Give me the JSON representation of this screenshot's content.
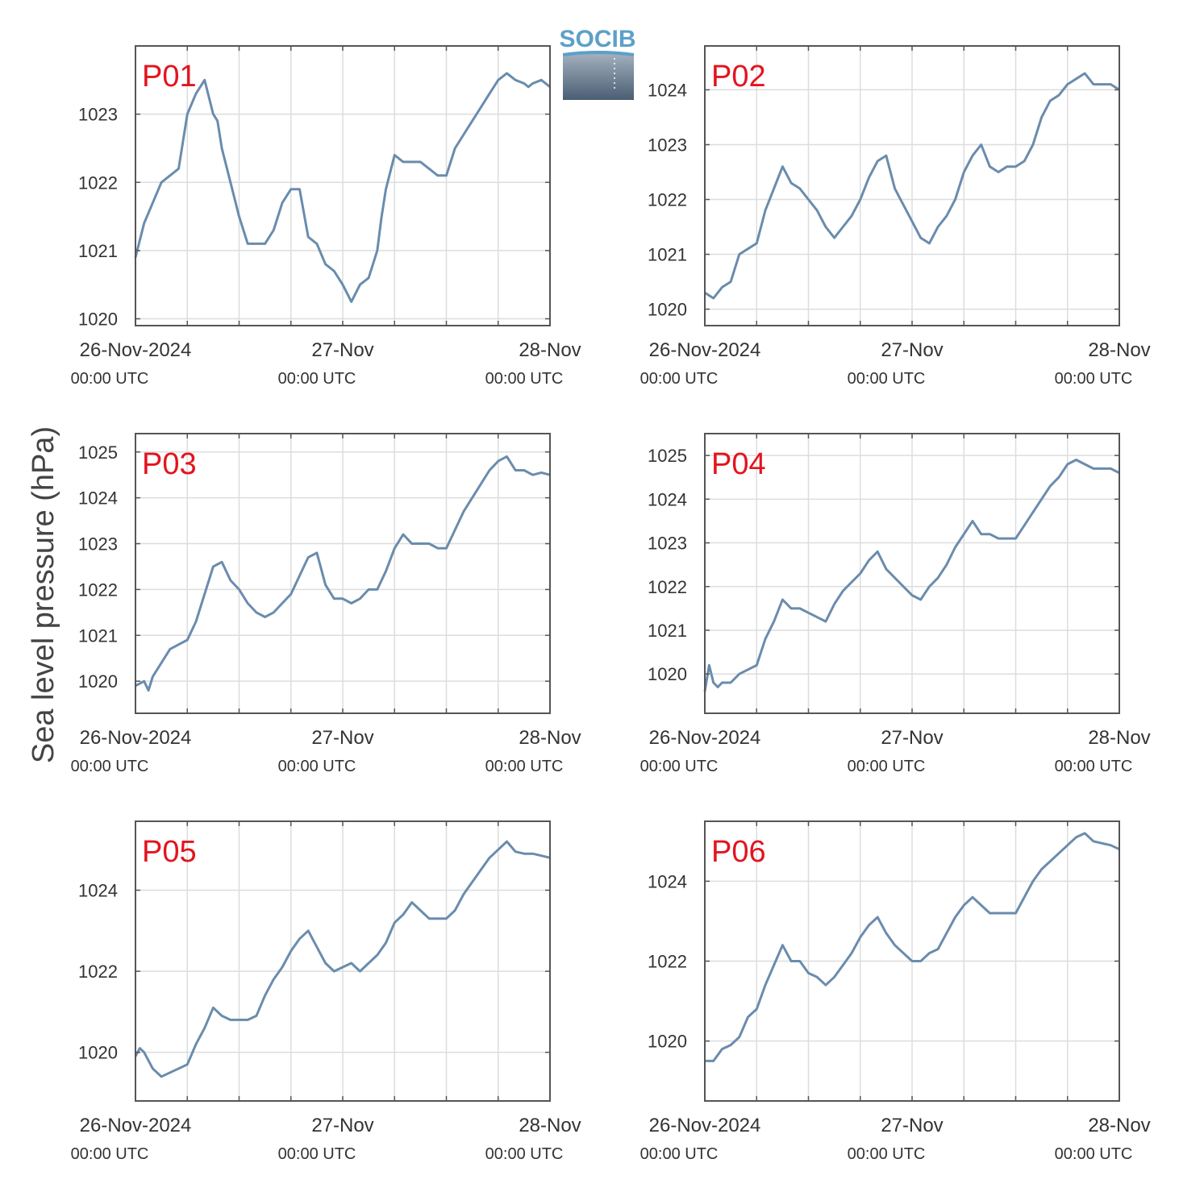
{
  "figure": {
    "ylabel": "Sea level pressure (hPa)",
    "logo_text": "SOCIB",
    "colors": {
      "line": "#6a8cad",
      "panel_label": "#e3141e",
      "grid": "#dddddd",
      "axis": "#555555"
    }
  },
  "chart_data": [
    {
      "type": "line",
      "title": "P01",
      "xlabel": "",
      "ylabel": "Sea level pressure (hPa)",
      "xlim": [
        0,
        48
      ],
      "ylim": [
        1019.9,
        1024.0
      ],
      "xticks": [
        0,
        24,
        48
      ],
      "xticklabels": [
        "26-Nov-2024",
        "27-Nov",
        "28-Nov"
      ],
      "xticksublabels": [
        "00:00 UTC",
        "00:00 UTC",
        "00:00 UTC"
      ],
      "yticks": [
        1020,
        1021,
        1022,
        1023
      ],
      "grid": true,
      "series": [
        {
          "x": [
            0,
            1,
            2,
            3,
            4,
            5,
            6,
            7,
            8,
            9,
            9.5,
            10,
            11,
            12,
            13,
            14,
            15,
            16,
            17,
            18,
            19,
            20,
            21,
            22,
            23,
            24,
            25,
            26,
            27,
            28,
            28.5,
            29,
            30,
            31,
            32,
            33,
            34,
            35,
            36,
            37,
            38,
            39,
            40,
            41,
            42,
            43,
            44,
            45,
            45.5,
            46,
            47,
            48
          ],
          "y": [
            1020.9,
            1021.4,
            1021.7,
            1022.0,
            1022.1,
            1022.2,
            1023.0,
            1023.3,
            1023.5,
            1023.0,
            1022.9,
            1022.5,
            1022.0,
            1021.5,
            1021.1,
            1021.1,
            1021.1,
            1021.3,
            1021.7,
            1021.9,
            1021.9,
            1021.2,
            1021.1,
            1020.8,
            1020.7,
            1020.5,
            1020.25,
            1020.5,
            1020.6,
            1021.0,
            1021.5,
            1021.9,
            1022.4,
            1022.3,
            1022.3,
            1022.3,
            1022.2,
            1022.1,
            1022.1,
            1022.5,
            1022.7,
            1022.9,
            1023.1,
            1023.3,
            1023.5,
            1023.6,
            1023.5,
            1023.45,
            1023.4,
            1023.45,
            1023.5,
            1023.4
          ]
        }
      ]
    },
    {
      "type": "line",
      "title": "P02",
      "xlabel": "",
      "ylabel": "Sea level pressure (hPa)",
      "xlim": [
        0,
        48
      ],
      "ylim": [
        1019.7,
        1024.8
      ],
      "xticks": [
        0,
        24,
        48
      ],
      "xticklabels": [
        "26-Nov-2024",
        "27-Nov",
        "28-Nov"
      ],
      "xticksublabels": [
        "00:00 UTC",
        "00:00 UTC",
        "00:00 UTC"
      ],
      "yticks": [
        1020,
        1021,
        1022,
        1023,
        1024
      ],
      "grid": true,
      "series": [
        {
          "x": [
            0,
            1,
            2,
            3,
            4,
            5,
            6,
            7,
            8,
            9,
            10,
            11,
            12,
            13,
            14,
            15,
            16,
            17,
            18,
            19,
            20,
            21,
            22,
            23,
            24,
            25,
            26,
            27,
            28,
            29,
            30,
            31,
            32,
            33,
            34,
            35,
            36,
            37,
            38,
            39,
            40,
            41,
            42,
            43,
            44,
            45,
            46,
            47,
            48
          ],
          "y": [
            1020.3,
            1020.2,
            1020.4,
            1020.5,
            1021.0,
            1021.1,
            1021.2,
            1021.8,
            1022.2,
            1022.6,
            1022.3,
            1022.2,
            1022.0,
            1021.8,
            1021.5,
            1021.3,
            1021.5,
            1021.7,
            1022.0,
            1022.4,
            1022.7,
            1022.8,
            1022.2,
            1021.9,
            1021.6,
            1021.3,
            1021.2,
            1021.5,
            1021.7,
            1022.0,
            1022.5,
            1022.8,
            1023.0,
            1022.6,
            1022.5,
            1022.6,
            1022.6,
            1022.7,
            1023.0,
            1023.5,
            1023.8,
            1023.9,
            1024.1,
            1024.2,
            1024.3,
            1024.1,
            1024.1,
            1024.1,
            1024.0
          ]
        }
      ]
    },
    {
      "type": "line",
      "title": "P03",
      "xlabel": "",
      "ylabel": "Sea level pressure (hPa)",
      "xlim": [
        0,
        48
      ],
      "ylim": [
        1019.3,
        1025.4
      ],
      "xticks": [
        0,
        24,
        48
      ],
      "xticklabels": [
        "26-Nov-2024",
        "27-Nov",
        "28-Nov"
      ],
      "xticksublabels": [
        "00:00 UTC",
        "00:00 UTC",
        "00:00 UTC"
      ],
      "yticks": [
        1020,
        1021,
        1022,
        1023,
        1024,
        1025
      ],
      "grid": true,
      "series": [
        {
          "x": [
            0,
            1,
            1.5,
            2,
            3,
            4,
            5,
            6,
            7,
            8,
            9,
            10,
            11,
            12,
            13,
            14,
            15,
            16,
            17,
            18,
            19,
            20,
            21,
            22,
            23,
            24,
            25,
            26,
            27,
            28,
            29,
            30,
            31,
            32,
            33,
            34,
            35,
            36,
            37,
            38,
            39,
            40,
            41,
            42,
            43,
            44,
            45,
            46,
            47,
            48
          ],
          "y": [
            1019.9,
            1020.0,
            1019.8,
            1020.1,
            1020.4,
            1020.7,
            1020.8,
            1020.9,
            1021.3,
            1021.9,
            1022.5,
            1022.6,
            1022.2,
            1022.0,
            1021.7,
            1021.5,
            1021.4,
            1021.5,
            1021.7,
            1021.9,
            1022.3,
            1022.7,
            1022.8,
            1022.1,
            1021.8,
            1021.8,
            1021.7,
            1021.8,
            1022.0,
            1022.0,
            1022.4,
            1022.9,
            1023.2,
            1023.0,
            1023.0,
            1023.0,
            1022.9,
            1022.9,
            1023.3,
            1023.7,
            1024.0,
            1024.3,
            1024.6,
            1024.8,
            1024.9,
            1024.6,
            1024.6,
            1024.5,
            1024.55,
            1024.5
          ]
        }
      ]
    },
    {
      "type": "line",
      "title": "P04",
      "xlabel": "",
      "ylabel": "Sea level pressure (hPa)",
      "xlim": [
        0,
        48
      ],
      "ylim": [
        1019.1,
        1025.5
      ],
      "xticks": [
        0,
        24,
        48
      ],
      "xticklabels": [
        "26-Nov-2024",
        "27-Nov",
        "28-Nov"
      ],
      "xticksublabels": [
        "00:00 UTC",
        "00:00 UTC",
        "00:00 UTC"
      ],
      "yticks": [
        1020,
        1021,
        1022,
        1023,
        1024,
        1025
      ],
      "grid": true,
      "series": [
        {
          "x": [
            0,
            0.5,
            1,
            1.5,
            2,
            3,
            4,
            5,
            6,
            7,
            8,
            9,
            10,
            11,
            12,
            13,
            14,
            15,
            16,
            17,
            18,
            19,
            20,
            21,
            22,
            23,
            24,
            25,
            26,
            27,
            28,
            29,
            30,
            31,
            32,
            33,
            34,
            35,
            36,
            37,
            38,
            39,
            40,
            41,
            42,
            43,
            44,
            45,
            46,
            47,
            48
          ],
          "y": [
            1019.6,
            1020.2,
            1019.8,
            1019.7,
            1019.8,
            1019.8,
            1020.0,
            1020.1,
            1020.2,
            1020.8,
            1021.2,
            1021.7,
            1021.5,
            1021.5,
            1021.4,
            1021.3,
            1021.2,
            1021.6,
            1021.9,
            1022.1,
            1022.3,
            1022.6,
            1022.8,
            1022.4,
            1022.2,
            1022.0,
            1021.8,
            1021.7,
            1022.0,
            1022.2,
            1022.5,
            1022.9,
            1023.2,
            1023.5,
            1023.2,
            1023.2,
            1023.1,
            1023.1,
            1023.1,
            1023.4,
            1023.7,
            1024.0,
            1024.3,
            1024.5,
            1024.8,
            1024.9,
            1024.8,
            1024.7,
            1024.7,
            1024.7,
            1024.6
          ]
        }
      ]
    },
    {
      "type": "line",
      "title": "P05",
      "xlabel": "",
      "ylabel": "Sea level pressure (hPa)",
      "xlim": [
        0,
        48
      ],
      "ylim": [
        1018.8,
        1025.7
      ],
      "xticks": [
        0,
        24,
        48
      ],
      "xticklabels": [
        "26-Nov-2024",
        "27-Nov",
        "28-Nov"
      ],
      "xticksublabels": [
        "00:00 UTC",
        "00:00 UTC",
        "00:00 UTC"
      ],
      "yticks": [
        1020,
        1022,
        1024
      ],
      "grid": true,
      "series": [
        {
          "x": [
            0,
            0.5,
            1,
            2,
            3,
            4,
            5,
            6,
            7,
            8,
            9,
            10,
            11,
            12,
            13,
            14,
            15,
            16,
            17,
            18,
            19,
            20,
            21,
            22,
            23,
            24,
            25,
            26,
            27,
            28,
            29,
            30,
            31,
            32,
            33,
            34,
            35,
            36,
            37,
            38,
            39,
            40,
            41,
            42,
            43,
            44,
            45,
            46,
            47,
            48
          ],
          "y": [
            1019.9,
            1020.1,
            1020.0,
            1019.6,
            1019.4,
            1019.5,
            1019.6,
            1019.7,
            1020.2,
            1020.6,
            1021.1,
            1020.9,
            1020.8,
            1020.8,
            1020.8,
            1020.9,
            1021.4,
            1021.8,
            1022.1,
            1022.5,
            1022.8,
            1023.0,
            1022.6,
            1022.2,
            1022.0,
            1022.1,
            1022.2,
            1022.0,
            1022.2,
            1022.4,
            1022.7,
            1023.2,
            1023.4,
            1023.7,
            1023.5,
            1023.3,
            1023.3,
            1023.3,
            1023.5,
            1023.9,
            1024.2,
            1024.5,
            1024.8,
            1025.0,
            1025.2,
            1024.95,
            1024.9,
            1024.9,
            1024.85,
            1024.8
          ]
        }
      ]
    },
    {
      "type": "line",
      "title": "P06",
      "xlabel": "",
      "ylabel": "Sea level pressure (hPa)",
      "xlim": [
        0,
        48
      ],
      "ylim": [
        1018.5,
        1025.5
      ],
      "xticks": [
        0,
        24,
        48
      ],
      "xticklabels": [
        "26-Nov-2024",
        "27-Nov",
        "28-Nov"
      ],
      "xticksublabels": [
        "00:00 UTC",
        "00:00 UTC",
        "00:00 UTC"
      ],
      "yticks": [
        1020,
        1022,
        1024
      ],
      "grid": true,
      "series": [
        {
          "x": [
            0,
            1,
            2,
            3,
            4,
            5,
            6,
            7,
            8,
            9,
            10,
            11,
            12,
            13,
            14,
            15,
            16,
            17,
            18,
            19,
            20,
            21,
            22,
            23,
            24,
            25,
            26,
            27,
            28,
            29,
            30,
            31,
            32,
            33,
            34,
            35,
            36,
            37,
            38,
            39,
            40,
            41,
            42,
            43,
            44,
            45,
            46,
            47,
            48
          ],
          "y": [
            1019.5,
            1019.5,
            1019.8,
            1019.9,
            1020.1,
            1020.6,
            1020.8,
            1021.4,
            1021.9,
            1022.4,
            1022.0,
            1022.0,
            1021.7,
            1021.6,
            1021.4,
            1021.6,
            1021.9,
            1022.2,
            1022.6,
            1022.9,
            1023.1,
            1022.7,
            1022.4,
            1022.2,
            1022.0,
            1022.0,
            1022.2,
            1022.3,
            1022.7,
            1023.1,
            1023.4,
            1023.6,
            1023.4,
            1023.2,
            1023.2,
            1023.2,
            1023.2,
            1023.6,
            1024.0,
            1024.3,
            1024.5,
            1024.7,
            1024.9,
            1025.1,
            1025.2,
            1025.0,
            1024.95,
            1024.9,
            1024.8
          ]
        }
      ]
    }
  ]
}
